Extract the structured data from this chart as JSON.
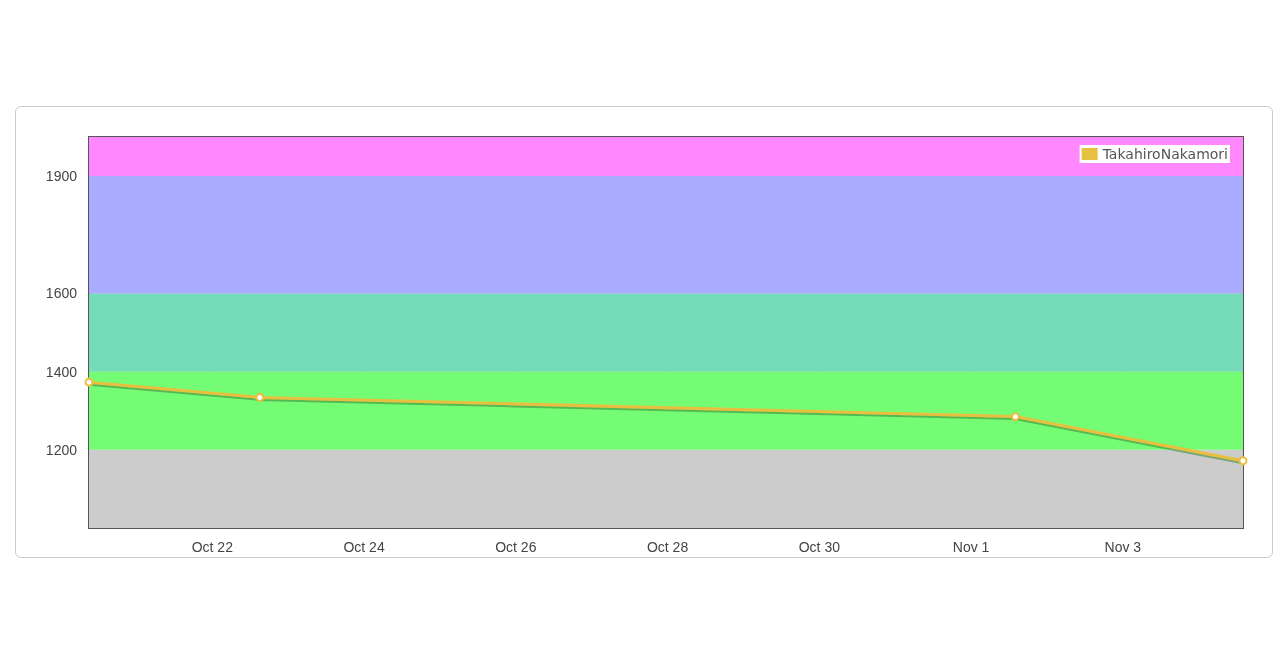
{
  "chart_data": {
    "type": "line",
    "x": [
      "--10-20T09:00",
      "--10-22T15:00",
      "--11-01T14:00",
      "--11-04T14:00"
    ],
    "series": [
      {
        "name": "TakahiroNakamori",
        "color": "#e8c040",
        "values": [
          1373,
          1334,
          1285,
          1172
        ]
      }
    ],
    "xlim": [
      "--10-20T09:00",
      "--11-04T14:00"
    ],
    "xticks": [
      {
        "value": "--10-22",
        "label": "Oct 22"
      },
      {
        "value": "--10-24",
        "label": "Oct 24"
      },
      {
        "value": "--10-26",
        "label": "Oct 26"
      },
      {
        "value": "--10-28",
        "label": "Oct 28"
      },
      {
        "value": "--10-30",
        "label": "Oct 30"
      },
      {
        "value": "--11-01",
        "label": "Nov 1"
      },
      {
        "value": "--11-03",
        "label": "Nov 3"
      }
    ],
    "ylim": [
      1000,
      2000
    ],
    "yticks": [
      1200,
      1400,
      1600,
      1900
    ],
    "bands": [
      {
        "axis": "y",
        "from": 1000,
        "to": 1200,
        "color": "#cccccc"
      },
      {
        "axis": "y",
        "from": 1200,
        "to": 1400,
        "color": "#74fc74"
      },
      {
        "axis": "y",
        "from": 1400,
        "to": 1600,
        "color": "#74dcb8"
      },
      {
        "axis": "y",
        "from": 1600,
        "to": 1900,
        "color": "#aaaaff"
      },
      {
        "axis": "y",
        "from": 1900,
        "to": 2000,
        "color": "#ff88ff"
      }
    ],
    "grid": true,
    "legend": "top right",
    "marker": "circle",
    "line_style": "solid"
  }
}
